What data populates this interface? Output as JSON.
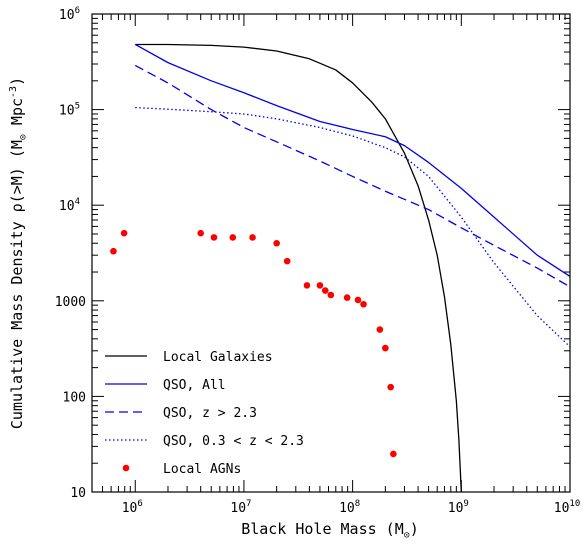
{
  "chart_data": {
    "type": "line",
    "xlabel": "Black Hole Mass (M",
    "xlabel_sub": "⊙",
    "xlabel_end": ")",
    "ylabel": "Cumulative Mass Density ρ(>M) (M",
    "ylabel_sub": "⊙",
    "ylabel_mid": " Mpc",
    "ylabel_sup": "-3",
    "ylabel_end": ")",
    "x_scale": "log",
    "y_scale": "log",
    "xlim": [
      400000,
      10000000000
    ],
    "ylim": [
      10,
      1000000
    ],
    "x_ticks": [
      {
        "base": "10",
        "exp": "6",
        "value": 1000000
      },
      {
        "base": "10",
        "exp": "7",
        "value": 10000000
      },
      {
        "base": "10",
        "exp": "8",
        "value": 100000000
      },
      {
        "base": "10",
        "exp": "9",
        "value": 1000000000
      },
      {
        "base": "10",
        "exp": "10",
        "value": 10000000000
      }
    ],
    "y_ticks": [
      {
        "base": "10",
        "exp": "",
        "value": 10
      },
      {
        "base": "100",
        "exp": "",
        "value": 100
      },
      {
        "base": "1000",
        "exp": "",
        "value": 1000
      },
      {
        "base": "10",
        "exp": "4",
        "value": 10000
      },
      {
        "base": "10",
        "exp": "5",
        "value": 100000
      },
      {
        "base": "10",
        "exp": "6",
        "value": 1000000
      }
    ],
    "legend_position": "bottom-left",
    "series": [
      {
        "name": "Local Galaxies",
        "color": "#000000",
        "style": "solid",
        "x": [
          1000000,
          2000000,
          5000000,
          10000000,
          20000000,
          40000000,
          70000000,
          100000000,
          150000000,
          200000000,
          300000000,
          400000000,
          500000000,
          600000000,
          700000000,
          800000000,
          900000000,
          950000000,
          1000000000
        ],
        "y": [
          480000,
          480000,
          470000,
          450000,
          410000,
          340000,
          260000,
          190000,
          120000,
          80000,
          35000,
          16000,
          7000,
          3000,
          1100,
          350,
          90,
          35,
          10
        ]
      },
      {
        "name": "QSO, All",
        "color": "#0000ee",
        "style": "solid",
        "x": [
          1000000,
          2000000,
          5000000,
          10000000,
          20000000,
          50000000,
          100000000,
          200000000,
          300000000,
          500000000,
          1000000000,
          2000000000,
          5000000000,
          10000000000
        ],
        "y": [
          480000,
          310000,
          200000,
          150000,
          110000,
          75000,
          62000,
          52000,
          42000,
          28000,
          15000,
          7500,
          3000,
          1800
        ]
      },
      {
        "name": "QSO, z > 2.3",
        "color": "#0000ee",
        "style": "dashed",
        "x": [
          1000000,
          2000000,
          5000000,
          10000000,
          20000000,
          50000000,
          100000000,
          200000000,
          500000000,
          1000000000,
          2000000000,
          5000000000,
          10000000000
        ],
        "y": [
          290000,
          190000,
          100000,
          65000,
          46000,
          29000,
          20000,
          14000,
          9000,
          5800,
          3800,
          2200,
          1400
        ]
      },
      {
        "name": "QSO, 0.3 < z < 2.3",
        "color": "#0000ee",
        "style": "dotted",
        "x": [
          1000000,
          2000000,
          5000000,
          10000000,
          20000000,
          50000000,
          100000000,
          200000000,
          300000000,
          500000000,
          1000000000,
          2000000000,
          5000000000,
          10000000000
        ],
        "y": [
          105000,
          101000,
          95000,
          90000,
          80000,
          65000,
          53000,
          40000,
          32000,
          20000,
          7500,
          2500,
          700,
          330
        ]
      },
      {
        "name": "Local AGNs",
        "color": "#ff0000",
        "style": "points",
        "x": [
          630000,
          790000,
          4000000,
          5300000,
          7900000,
          12000000,
          20000000,
          25000000,
          38000000,
          50000000,
          56000000,
          63000000,
          89000000,
          112000000,
          126000000,
          178000000,
          200000000,
          224000000,
          237000000
        ],
        "y": [
          3300,
          5100,
          5100,
          4600,
          4600,
          4600,
          4000,
          2600,
          1450,
          1450,
          1280,
          1150,
          1080,
          1020,
          920,
          500,
          320,
          125,
          25
        ]
      }
    ]
  }
}
